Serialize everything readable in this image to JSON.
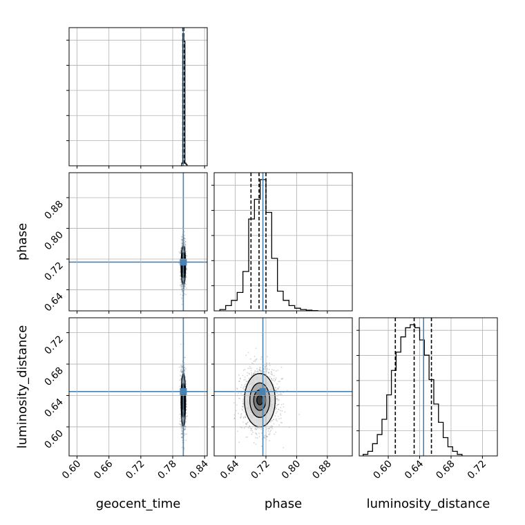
{
  "chart_data": {
    "type": "corner",
    "parameters": [
      "geocent_time",
      "phase",
      "luminosity_distance"
    ],
    "axis_titles": {
      "x": [
        "geocent_time",
        "phase",
        "luminosity_distance"
      ],
      "y": [
        "phase",
        "luminosity_distance"
      ]
    },
    "grid": true,
    "colors": {
      "truth": "#4682b4",
      "line": "#000000",
      "grid": "#b0b0b0",
      "scatter": "#808080"
    },
    "truths": {
      "geocent_time": 0.8,
      "phase": 0.712,
      "luminosity_distance": 0.645
    },
    "axis_ranges": {
      "geocent_time": [
        0.585,
        0.845
      ],
      "phase": [
        0.585,
        0.945
      ],
      "luminosity_distance": [
        0.563,
        0.739
      ]
    },
    "tick_values": {
      "geocent_time": [
        0.6,
        0.66,
        0.72,
        0.78,
        0.84
      ],
      "phase": [
        0.64,
        0.72,
        0.8,
        0.88
      ],
      "luminosity_distance": [
        0.6,
        0.64,
        0.68,
        0.72
      ]
    },
    "tick_labels": {
      "geocent_time": [
        "0.60",
        "0.66",
        "0.72",
        "0.78",
        "0.84"
      ],
      "phase": [
        "0.64",
        "0.72",
        "0.80",
        "0.88"
      ],
      "luminosity_distance": [
        "0.60",
        "0.64",
        "0.68",
        "0.72"
      ]
    },
    "marginals": {
      "geocent_time": {
        "quantiles": [
          0.799,
          0.8,
          0.801
        ],
        "bin_edges": [
          0.795,
          0.797,
          0.799,
          0.801,
          0.803,
          0.805,
          0.807
        ],
        "counts": [
          0,
          2,
          100,
          95,
          2,
          1
        ]
      },
      "phase": {
        "quantiles": [
          0.681,
          0.702,
          0.72
        ],
        "bin_edges": [
          0.6,
          0.615,
          0.63,
          0.645,
          0.66,
          0.675,
          0.69,
          0.705,
          0.72,
          0.735,
          0.75,
          0.765,
          0.78,
          0.795,
          0.81,
          0.825,
          0.84,
          0.855
        ],
        "counts": [
          1,
          4,
          8,
          14,
          30,
          70,
          85,
          100,
          75,
          40,
          15,
          8,
          4,
          2,
          1,
          0.5,
          0.2
        ]
      },
      "luminosity_distance": {
        "quantiles": [
          0.609,
          0.633,
          0.655
        ],
        "bin_edges": [
          0.568,
          0.574,
          0.58,
          0.586,
          0.592,
          0.598,
          0.604,
          0.61,
          0.616,
          0.622,
          0.628,
          0.634,
          0.64,
          0.646,
          0.652,
          0.658,
          0.664,
          0.67,
          0.676,
          0.682,
          0.688,
          0.694
        ],
        "counts": [
          1,
          3,
          8,
          14,
          24,
          40,
          56,
          68,
          78,
          84,
          86,
          84,
          76,
          66,
          50,
          34,
          22,
          12,
          6,
          3,
          1
        ]
      }
    },
    "joint": {
      "phase|geocent_time": {
        "center": [
          0.8,
          0.704
        ],
        "contour_half_widths": [
          [
            0.0012,
            0.012
          ],
          [
            0.002,
            0.022
          ],
          [
            0.003,
            0.034
          ],
          [
            0.0042,
            0.05
          ]
        ],
        "scatter_spread": [
          0.0022,
          0.03
        ]
      },
      "luminosity_distance|geocent_time": {
        "center": [
          0.8,
          0.634
        ],
        "contour_half_widths": [
          [
            0.0012,
            0.006
          ],
          [
            0.002,
            0.013
          ],
          [
            0.003,
            0.022
          ],
          [
            0.0042,
            0.034
          ]
        ],
        "scatter_spread": [
          0.0022,
          0.02
        ]
      },
      "luminosity_distance|phase": {
        "center": [
          0.704,
          0.634
        ],
        "contour_half_widths": [
          [
            0.008,
            0.006
          ],
          [
            0.016,
            0.013
          ],
          [
            0.026,
            0.022
          ],
          [
            0.04,
            0.034
          ]
        ],
        "scatter_spread": [
          0.024,
          0.02
        ]
      }
    }
  }
}
